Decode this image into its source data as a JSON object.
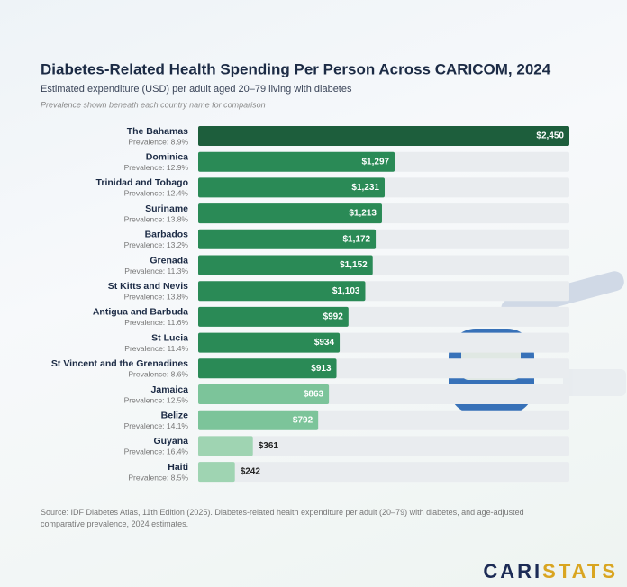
{
  "chart_data": {
    "type": "bar",
    "title": "Diabetes-Related Health Spending Per Person Across CARICOM, 2024",
    "subtitle": "Estimated expenditure (USD) per adult aged 20–79 living with diabetes",
    "note": "Prevalence shown beneath each country name for comparison",
    "categories": [
      "The Bahamas",
      "Dominica",
      "Trinidad and Tobago",
      "Suriname",
      "Barbados",
      "Grenada",
      "St Kitts and Nevis",
      "Antigua and Barbuda",
      "St Lucia",
      "St Vincent and the Grenadines",
      "Jamaica",
      "Belize",
      "Guyana",
      "Haiti"
    ],
    "prevalence_labels": [
      "Prevalence: 8.9%",
      "Prevalence: 12.9%",
      "Prevalence: 12.4%",
      "Prevalence: 13.8%",
      "Prevalence: 13.2%",
      "Prevalence: 11.3%",
      "Prevalence: 13.8%",
      "Prevalence: 11.6%",
      "Prevalence: 11.4%",
      "Prevalence: 8.6%",
      "Prevalence: 12.5%",
      "Prevalence: 14.1%",
      "Prevalence: 16.4%",
      "Prevalence: 8.5%"
    ],
    "values": [
      2450,
      1297,
      1231,
      1213,
      1172,
      1152,
      1103,
      992,
      934,
      913,
      863,
      792,
      361,
      242
    ],
    "value_labels": [
      "$2,450",
      "$1,297",
      "$1,231",
      "$1,213",
      "$1,172",
      "$1,152",
      "$1,103",
      "$992",
      "$934",
      "$913",
      "$863",
      "$792",
      "$361",
      "$242"
    ],
    "colors": [
      "#1d5e3c",
      "#2a8a56",
      "#2a8a56",
      "#2a8a56",
      "#2a8a56",
      "#2a8a56",
      "#2a8a56",
      "#2a8a56",
      "#2a8a56",
      "#2a8a56",
      "#7cc49a",
      "#7cc49a",
      "#9fd4b2",
      "#9fd4b2"
    ],
    "xlim": [
      0,
      2450
    ],
    "source": "Source: IDF Diabetes Atlas, 11th Edition (2025). Diabetes-related health expenditure per adult (20–79) with diabetes, and age-adjusted comparative prevalence, 2024 estimates."
  },
  "logo": [
    "CARI",
    "STATS"
  ]
}
